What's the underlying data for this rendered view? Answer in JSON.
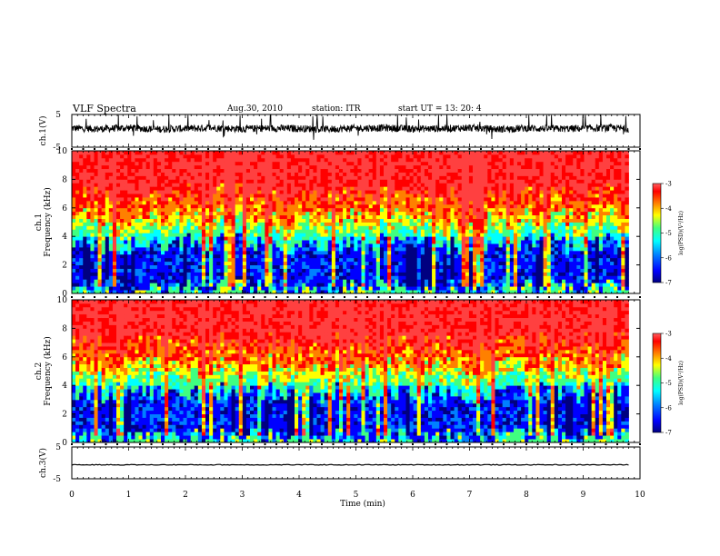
{
  "header": {
    "title": "VLF Spectra",
    "date": "Aug.30, 2010",
    "station": "station: ITR",
    "start_ut": "start UT =  13: 20: 4"
  },
  "chart_data": [
    {
      "id": "ch1_waveform",
      "type": "line",
      "ylabel": "ch.1(V)",
      "ylim": [
        -5,
        5
      ],
      "yticks": [
        "5",
        "-5"
      ],
      "x": [
        0,
        0.5,
        1,
        1.5,
        2,
        2.5,
        3,
        3.5,
        4,
        4.5,
        5,
        5.5,
        6,
        6.5,
        7,
        7.5,
        8,
        8.5,
        9,
        9.5,
        9.8
      ],
      "values": [
        0.8,
        0.6,
        0.9,
        0.5,
        0.7,
        0.9,
        0.6,
        0.8,
        0.7,
        0.5,
        0.8,
        0.9,
        0.6,
        0.7,
        0.9,
        0.5,
        0.8,
        0.6,
        0.7,
        0.9,
        0.6
      ]
    },
    {
      "id": "ch1_spectrogram",
      "type": "heatmap",
      "ylabel": "ch.1 Frequency (kHz)",
      "ylim": [
        0,
        10
      ],
      "yticks": [
        "0",
        "2",
        "4",
        "6",
        "8",
        "10"
      ],
      "freq_bands_khz": [
        [
          0,
          0.4
        ],
        [
          0.4,
          3.5
        ],
        [
          3.5,
          4.5
        ],
        [
          4.5,
          5.5
        ],
        [
          5.5,
          7.0
        ],
        [
          7.0,
          10
        ]
      ],
      "band_log_psd": [
        -5.0,
        -6.3,
        -5.2,
        -4.6,
        -4.0,
        -3.4
      ],
      "colorbar": {
        "label": "log(PSD)(V²/Hz)",
        "range": [
          -7,
          -3
        ],
        "ticks": [
          "-3",
          "-4",
          "-5",
          "-6",
          "-7"
        ]
      }
    },
    {
      "id": "ch2_spectrogram",
      "type": "heatmap",
      "ylabel": "ch.2 Frequency (kHz)",
      "ylim": [
        0,
        10
      ],
      "yticks": [
        "0",
        "2",
        "4",
        "6",
        "8",
        "10"
      ],
      "freq_bands_khz": [
        [
          0,
          0.4
        ],
        [
          0.4,
          3.5
        ],
        [
          3.5,
          4.5
        ],
        [
          4.5,
          5.5
        ],
        [
          5.5,
          7.0
        ],
        [
          7.0,
          10
        ]
      ],
      "band_log_psd": [
        -5.0,
        -6.3,
        -5.2,
        -4.6,
        -4.0,
        -3.4
      ],
      "colorbar": {
        "label": "log(PSD)(V²/Hz)",
        "range": [
          -7,
          -3
        ],
        "ticks": [
          "-3",
          "-4",
          "-5",
          "-6",
          "-7"
        ]
      }
    },
    {
      "id": "ch3_waveform",
      "type": "line",
      "ylabel": "ch.3(V)",
      "ylim": [
        -5,
        5
      ],
      "yticks": [
        "5",
        "-5"
      ],
      "x": [
        0,
        9.8
      ],
      "values": [
        -0.6,
        -0.6
      ]
    }
  ],
  "x_axis": {
    "label": "Time (min)",
    "xlim": [
      0,
      10
    ],
    "ticks": [
      "0",
      "1",
      "2",
      "3",
      "4",
      "5",
      "6",
      "7",
      "8",
      "9",
      "10"
    ]
  },
  "colors": {
    "psd_scale": [
      "#000080",
      "#0000ff",
      "#0080ff",
      "#00ffff",
      "#40ff80",
      "#ffff00",
      "#ff8000",
      "#ff0000",
      "#ff4040"
    ]
  }
}
